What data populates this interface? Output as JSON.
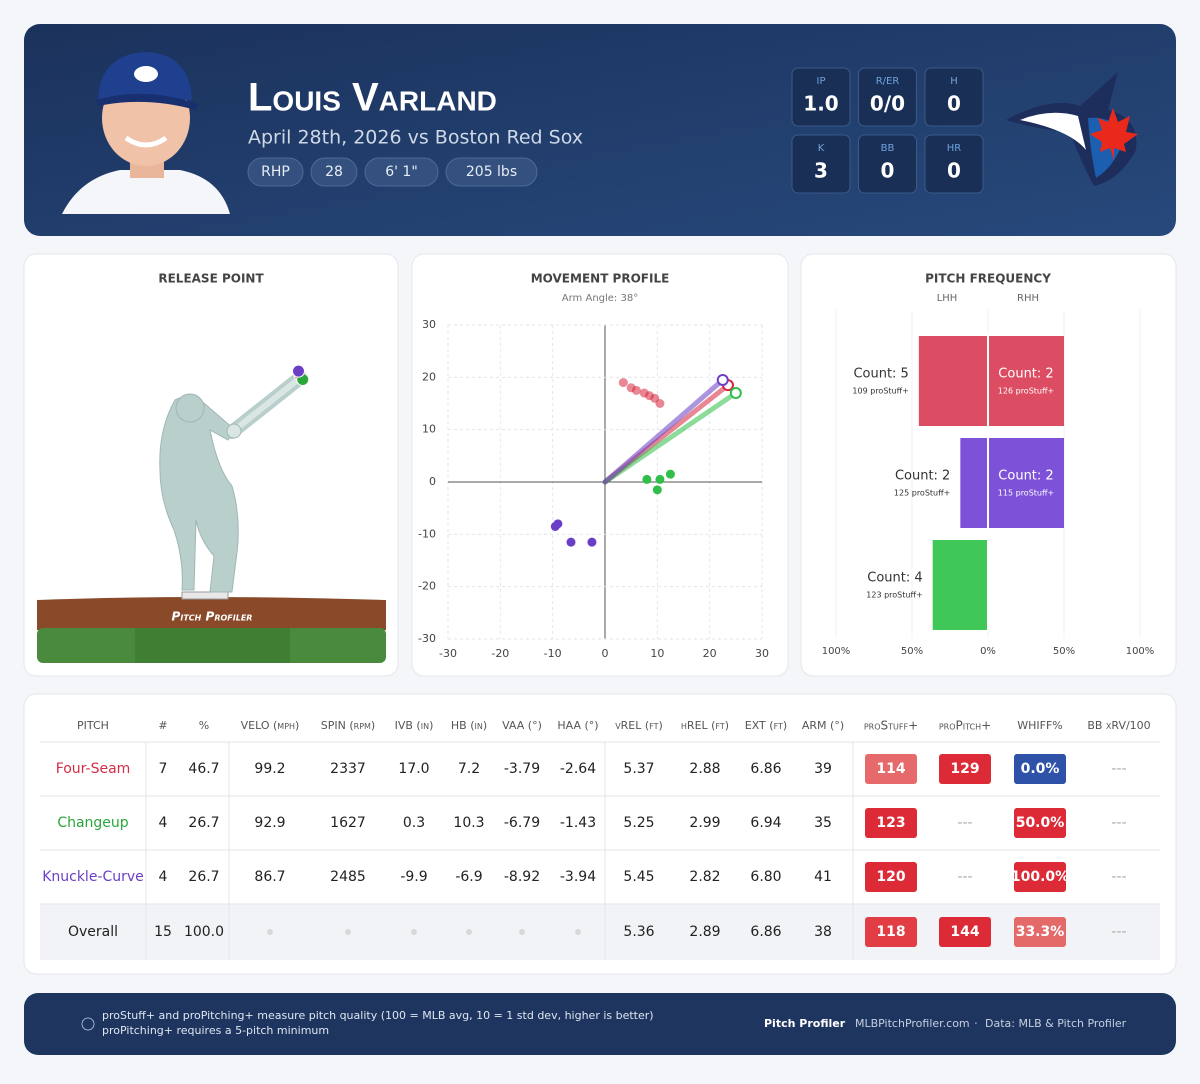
{
  "header": {
    "name": "Louis Varland",
    "subtitle": "April 28th, 2026 vs Boston Red Sox",
    "tags": [
      "RHP",
      "28",
      "6' 1\"",
      "205 lbs"
    ],
    "stats": [
      {
        "label": "IP",
        "value": "1.0"
      },
      {
        "label": "R/ER",
        "value": "0/0"
      },
      {
        "label": "H",
        "value": "0"
      },
      {
        "label": "K",
        "value": "3"
      },
      {
        "label": "BB",
        "value": "0"
      },
      {
        "label": "HR",
        "value": "0"
      }
    ]
  },
  "release_point": {
    "title": "RELEASE POINT",
    "logo_text": "Pitch Profiler"
  },
  "chart_data": [
    {
      "type": "scatter",
      "title": "MOVEMENT PROFILE",
      "subtitle": "Arm Angle: 38°",
      "xlim": [
        -30,
        30
      ],
      "ylim": [
        -30,
        30
      ],
      "xticks": [
        -30,
        -20,
        -10,
        0,
        10,
        20,
        30
      ],
      "yticks": [
        -30,
        -20,
        -10,
        0,
        10,
        20,
        30
      ],
      "grid": true,
      "series": [
        {
          "color": "#d7263d",
          "faded": true,
          "x": [
            3.5,
            5,
            6,
            7.5,
            8.5,
            9.5,
            10.5
          ],
          "values": [
            19,
            18,
            17.5,
            17,
            16.5,
            16,
            15
          ],
          "arm_vector": {
            "x": 23.5,
            "y": 18.5
          }
        },
        {
          "color": "#2fbf4a",
          "faded": false,
          "x": [
            8,
            10.5,
            12.5,
            10
          ],
          "values": [
            0.5,
            0.5,
            1.5,
            -1.5
          ],
          "arm_vector": {
            "x": 25,
            "y": 17
          }
        },
        {
          "color": "#6a3fc6",
          "faded": false,
          "x": [
            -9,
            -6.5,
            -2.5,
            -9.5
          ],
          "values": [
            -8,
            -11.5,
            -11.5,
            -8.5
          ],
          "arm_vector": {
            "x": 22.5,
            "y": 19.5
          }
        }
      ]
    },
    {
      "type": "bar",
      "orientation": "horizontal",
      "title": "PITCH FREQUENCY",
      "categories": [
        null,
        null,
        null
      ],
      "xlim": [
        -100,
        100
      ],
      "xticks": [
        {
          "value": -100,
          "label": "100%"
        },
        {
          "value": -50,
          "label": "50%"
        },
        {
          "value": 0,
          "label": "0%"
        },
        {
          "value": 50,
          "label": "50%"
        },
        {
          "value": 100,
          "label": "100%"
        }
      ],
      "colors": [
        "#dc4c63",
        "#7d52d9",
        "#3fc757"
      ],
      "grid": true,
      "series": [
        {
          "name": "LHH",
          "side": "left",
          "values": [
            45.5,
            18.2,
            36.4
          ],
          "count_labels": [
            "Count: 5",
            "Count: 2",
            "Count: 4"
          ],
          "stuff_labels": [
            "109 proStuff+",
            "125 proStuff+",
            "123 proStuff+"
          ]
        },
        {
          "name": "RHH",
          "side": "right",
          "values": [
            50,
            50,
            0
          ],
          "count_labels": [
            "Count: 2",
            "Count: 2",
            null
          ],
          "stuff_labels": [
            "126 proStuff+",
            "115 proStuff+",
            null
          ]
        }
      ]
    }
  ],
  "table": {
    "columns": [
      "PITCH",
      "#",
      "%",
      "VELO (mph)",
      "SPIN (rpm)",
      "IVB (in)",
      "HB (in)",
      "VAA (°)",
      "HAA (°)",
      "vREL (ft)",
      "hREL (ft)",
      "EXT (ft)",
      "ARM (°)",
      "proStuff+",
      "proPitch+",
      "WHIFF%",
      "BB xRV/100"
    ],
    "rows": [
      {
        "color": "#d22e45",
        "cells": [
          "Four-Seam",
          "7",
          "46.7",
          "99.2",
          "2337",
          "17.0",
          "7.2",
          "-3.79",
          "-2.64",
          "5.37",
          "2.88",
          "6.86",
          "39",
          {
            "text": "114",
            "color": "#e66a6c"
          },
          {
            "text": "129",
            "color": "#dc2a36"
          },
          {
            "text": "0.0%",
            "color": "#2d52a8"
          },
          "---"
        ]
      },
      {
        "color": "#2ba63a",
        "cells": [
          "Changeup",
          "4",
          "26.7",
          "92.9",
          "1627",
          "0.3",
          "10.3",
          "-6.79",
          "-1.43",
          "5.25",
          "2.99",
          "6.94",
          "35",
          {
            "text": "123",
            "color": "#dc2a36"
          },
          "---",
          {
            "text": "50.0%",
            "color": "#dc2a36"
          },
          "---"
        ]
      },
      {
        "color": "#6a3fc6",
        "cells": [
          "Knuckle-Curve",
          "4",
          "26.7",
          "86.7",
          "2485",
          "-9.9",
          "-6.9",
          "-8.92",
          "-3.94",
          "5.45",
          "2.82",
          "6.80",
          "41",
          {
            "text": "120",
            "color": "#dc2a36"
          },
          "---",
          {
            "text": "100.0%",
            "color": "#dc2a36"
          },
          "---"
        ]
      },
      {
        "color": "#222222",
        "cells": [
          "Overall",
          "15",
          "100.0",
          null,
          null,
          null,
          null,
          null,
          null,
          "5.36",
          "2.89",
          "6.86",
          "38",
          {
            "text": "118",
            "color": "#e23c44"
          },
          {
            "text": "144",
            "color": "#dc2a36"
          },
          {
            "text": "33.3%",
            "color": "#e46a6a"
          },
          "---"
        ]
      }
    ]
  },
  "footer": {
    "note": "proStuff+ and proPitching+ measure pitch quality (100 = MLB avg, 10 = 1 std dev, higher is better)",
    "note2": "proPitching+ requires a 5-pitch minimum",
    "brand": "Pitch Profiler",
    "site": "MLBPitchProfiler.com",
    "source": "Data: MLB & Pitch Profiler"
  }
}
